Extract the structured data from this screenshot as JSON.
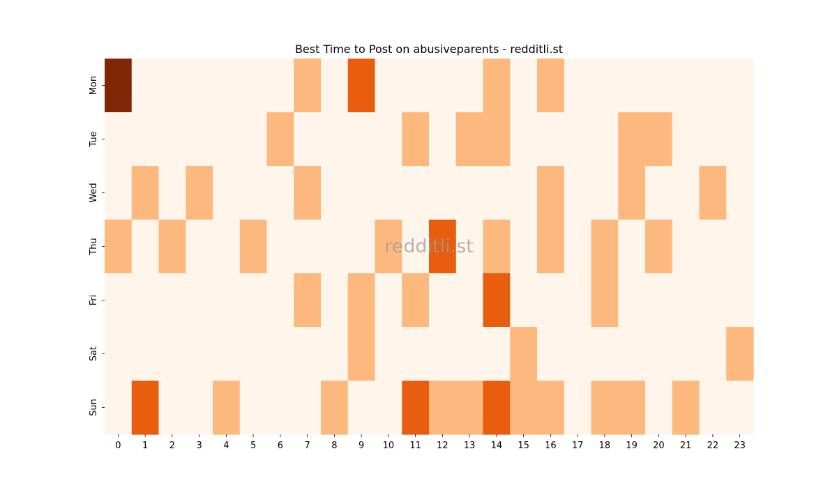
{
  "chart_data": {
    "type": "heatmap",
    "title": "Best Time to Post on abusiveparents - redditli.st",
    "watermark": "redditli.st",
    "x_categories": [
      "0",
      "1",
      "2",
      "3",
      "4",
      "5",
      "6",
      "7",
      "8",
      "9",
      "10",
      "11",
      "12",
      "13",
      "14",
      "15",
      "16",
      "17",
      "18",
      "19",
      "20",
      "21",
      "22",
      "23"
    ],
    "y_categories": [
      "Mon",
      "Tue",
      "Wed",
      "Thu",
      "Fri",
      "Sat",
      "Sun"
    ],
    "xlabel": "",
    "ylabel": "",
    "colorbar": false,
    "colormap": "Oranges",
    "colors": {
      "0": "#fff5eb",
      "1": "#fdb97d",
      "2": "#e85d0e",
      "3": "#7f2704"
    },
    "values": [
      [
        3,
        0,
        0,
        0,
        0,
        0,
        0,
        1,
        0,
        2,
        0,
        0,
        0,
        0,
        1,
        0,
        1,
        0,
        0,
        0,
        0,
        0,
        0,
        0
      ],
      [
        0,
        0,
        0,
        0,
        0,
        0,
        1,
        0,
        0,
        0,
        0,
        1,
        0,
        1,
        1,
        0,
        0,
        0,
        0,
        1,
        1,
        0,
        0,
        0
      ],
      [
        0,
        1,
        0,
        1,
        0,
        0,
        0,
        1,
        0,
        0,
        0,
        0,
        0,
        0,
        0,
        0,
        1,
        0,
        0,
        1,
        0,
        0,
        1,
        0
      ],
      [
        1,
        0,
        1,
        0,
        0,
        1,
        0,
        0,
        0,
        0,
        1,
        0,
        2,
        0,
        1,
        0,
        1,
        0,
        1,
        0,
        1,
        0,
        0,
        0
      ],
      [
        0,
        0,
        0,
        0,
        0,
        0,
        0,
        1,
        0,
        1,
        0,
        1,
        0,
        0,
        2,
        0,
        0,
        0,
        1,
        0,
        0,
        0,
        0,
        0
      ],
      [
        0,
        0,
        0,
        0,
        0,
        0,
        0,
        0,
        0,
        1,
        0,
        0,
        0,
        0,
        0,
        1,
        0,
        0,
        0,
        0,
        0,
        0,
        0,
        1
      ],
      [
        0,
        2,
        0,
        0,
        1,
        0,
        0,
        0,
        1,
        0,
        0,
        2,
        1,
        1,
        2,
        1,
        1,
        0,
        1,
        1,
        0,
        1,
        0,
        0
      ]
    ]
  }
}
